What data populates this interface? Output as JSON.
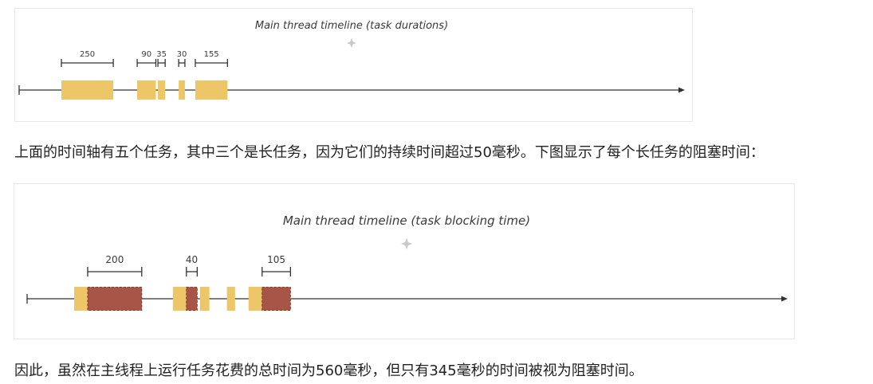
{
  "colors": {
    "task_fill": "#edc667",
    "blocking_fill": "#a65546",
    "axis": "#333333",
    "bracket": "#333333",
    "sparkle": "#c9c9c9"
  },
  "icons": {
    "sparkle": "sparkle-icon"
  },
  "figures": [
    {
      "title": "Main thread timeline (task durations)",
      "chart_data": {
        "type": "timeline",
        "x_range": [
          0,
          1000
        ],
        "tasks": [
          {
            "start": 0,
            "end": 250,
            "blocking_start": null
          },
          {
            "start": 365,
            "end": 455,
            "blocking_start": null
          },
          {
            "start": 465,
            "end": 500,
            "blocking_start": null
          },
          {
            "start": 565,
            "end": 595,
            "blocking_start": null
          },
          {
            "start": 645,
            "end": 800,
            "blocking_start": null
          }
        ],
        "brackets": [
          {
            "start": 0,
            "end": 250,
            "label": "250"
          },
          {
            "start": 365,
            "end": 455,
            "label": "90"
          },
          {
            "start": 465,
            "end": 500,
            "label": "35"
          },
          {
            "start": 565,
            "end": 595,
            "label": "30"
          },
          {
            "start": 645,
            "end": 800,
            "label": "155"
          }
        ]
      }
    },
    {
      "title": "Main thread timeline (task blocking time)",
      "chart_data": {
        "type": "timeline",
        "x_range": [
          0,
          1000
        ],
        "tasks": [
          {
            "start": 0,
            "end": 250,
            "blocking_start": 50
          },
          {
            "start": 365,
            "end": 455,
            "blocking_start": 415
          },
          {
            "start": 465,
            "end": 500,
            "blocking_start": null
          },
          {
            "start": 565,
            "end": 595,
            "blocking_start": null
          },
          {
            "start": 645,
            "end": 800,
            "blocking_start": 695
          }
        ],
        "brackets": [
          {
            "start": 50,
            "end": 250,
            "label": "200"
          },
          {
            "start": 415,
            "end": 455,
            "label": "40"
          },
          {
            "start": 695,
            "end": 800,
            "label": "105"
          }
        ]
      }
    }
  ],
  "paragraphs": {
    "first": "上面的时间轴有五个任务，其中三个是长任务，因为它们的持续时间超过50毫秒。下图显示了每个长任务的阻塞时间：",
    "second": "因此，虽然在主线程上运行任务花费的总时间为560毫秒，但只有345毫秒的时间被视为阻塞时间。"
  }
}
